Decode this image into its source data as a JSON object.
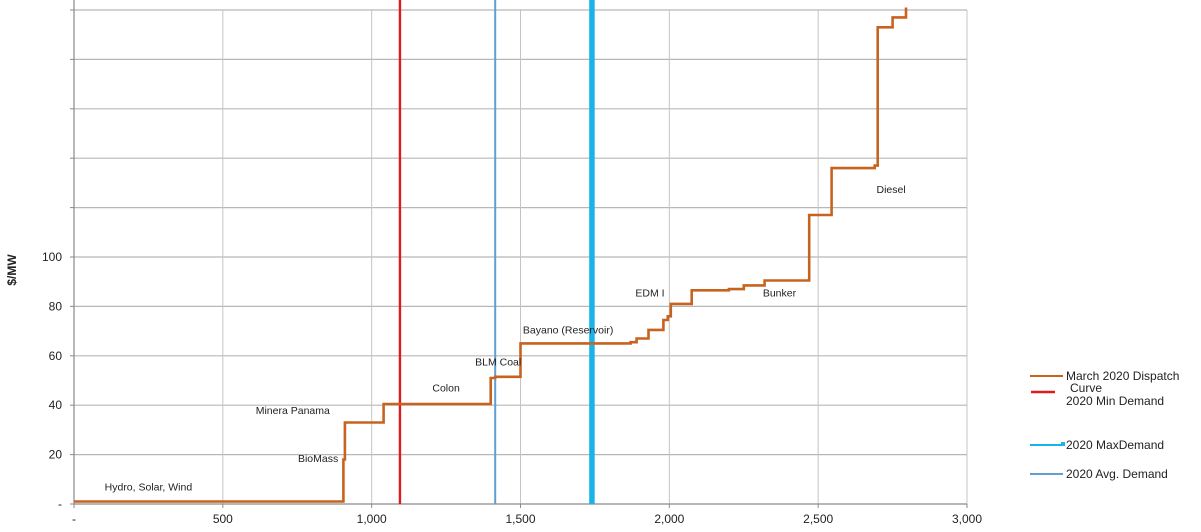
{
  "chart_data": {
    "type": "line",
    "ylabel": "$/MW",
    "xlim": [
      0,
      3000
    ],
    "ylim": [
      0,
      200
    ],
    "x_ticks": [
      {
        "value": 0,
        "label": "-"
      },
      {
        "value": 500,
        "label": "500"
      },
      {
        "value": 1000,
        "label": "1,000"
      },
      {
        "value": 1500,
        "label": "1,500"
      },
      {
        "value": 2000,
        "label": "2,000"
      },
      {
        "value": 2500,
        "label": "2,500"
      },
      {
        "value": 3000,
        "label": "3,000"
      }
    ],
    "y_ticks": [
      {
        "value": 0,
        "label": "-"
      },
      {
        "value": 20,
        "label": "20"
      },
      {
        "value": 40,
        "label": "40"
      },
      {
        "value": 60,
        "label": "60"
      },
      {
        "value": 80,
        "label": "80"
      },
      {
        "value": 100,
        "label": "100"
      },
      {
        "value": 120,
        "label": ""
      },
      {
        "value": 140,
        "label": ""
      },
      {
        "value": 160,
        "label": ""
      },
      {
        "value": 180,
        "label": ""
      },
      {
        "value": 200,
        "label": ""
      }
    ],
    "grid": true,
    "legend_position": "right",
    "series": [
      {
        "name": "March 2020 Dispatch Curve",
        "color": "#c8631f",
        "kind": "step",
        "points": [
          [
            0,
            1
          ],
          [
            905,
            1
          ],
          [
            905,
            18
          ],
          [
            910,
            18
          ],
          [
            910,
            33
          ],
          [
            1040,
            33
          ],
          [
            1040,
            40.5
          ],
          [
            1400,
            40.5
          ],
          [
            1400,
            51
          ],
          [
            1415,
            51
          ],
          [
            1415,
            51.5
          ],
          [
            1500,
            51.5
          ],
          [
            1500,
            65
          ],
          [
            1870,
            65
          ],
          [
            1870,
            65.5
          ],
          [
            1890,
            65.5
          ],
          [
            1890,
            67
          ],
          [
            1930,
            67
          ],
          [
            1930,
            70.5
          ],
          [
            1980,
            70.5
          ],
          [
            1980,
            74.5
          ],
          [
            1995,
            74.5
          ],
          [
            1995,
            76
          ],
          [
            2005,
            76
          ],
          [
            2005,
            81
          ],
          [
            2075,
            81
          ],
          [
            2075,
            86.5
          ],
          [
            2200,
            86.5
          ],
          [
            2200,
            87
          ],
          [
            2250,
            87
          ],
          [
            2250,
            88.5
          ],
          [
            2320,
            88.5
          ],
          [
            2320,
            90.5
          ],
          [
            2470,
            90.5
          ],
          [
            2470,
            117
          ],
          [
            2545,
            117
          ],
          [
            2545,
            136
          ],
          [
            2690,
            136
          ],
          [
            2690,
            137
          ],
          [
            2700,
            137
          ],
          [
            2700,
            193
          ],
          [
            2750,
            193
          ],
          [
            2750,
            197
          ],
          [
            2795,
            197
          ],
          [
            2795,
            201
          ]
        ]
      },
      {
        "name": "2020 Min Demand",
        "color": "#e01b1b",
        "kind": "vline",
        "x": 1095
      },
      {
        "name": "2020 Max Demand",
        "color": "#18b4e8",
        "kind": "vline",
        "x": 1740
      },
      {
        "name": "2020 Avg. Demand",
        "color": "#5f9fd4",
        "kind": "vline",
        "x": 1415
      }
    ],
    "annotations": [
      {
        "text": "Hydro, Solar, Wind",
        "x": 250,
        "y": 5.5
      },
      {
        "text": "BioMass",
        "x": 820,
        "y": 17
      },
      {
        "text": "Minera Panama",
        "x": 735,
        "y": 36.5
      },
      {
        "text": "Colon",
        "x": 1250,
        "y": 45.5
      },
      {
        "text": "BLM Coal",
        "x": 1425,
        "y": 56
      },
      {
        "text": "Bayano (Reservoir)",
        "x": 1660,
        "y": 69
      },
      {
        "text": "EDM I",
        "x": 1935,
        "y": 84
      },
      {
        "text": "Bunker",
        "x": 2370,
        "y": 84
      },
      {
        "text": "Diesel",
        "x": 2745,
        "y": 126
      }
    ]
  },
  "legend": [
    {
      "label_lines": [
        "March 2020 Dispatch",
        "Curve"
      ],
      "color": "#c8631f"
    },
    {
      "label_lines": [
        "2020 Min Demand"
      ],
      "color": "#e01b1b"
    },
    {
      "label_lines": [
        "2020 MaxDemand"
      ],
      "color": "#18b4e8"
    },
    {
      "label_lines": [
        "2020 Avg. Demand"
      ],
      "color": "#5f9fd4"
    }
  ]
}
